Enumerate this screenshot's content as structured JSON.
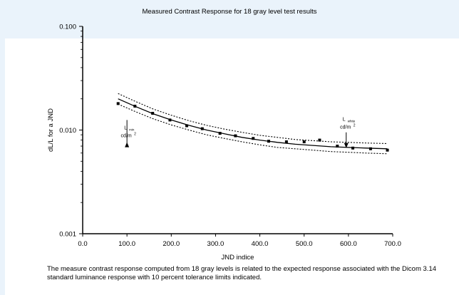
{
  "chart_data": {
    "type": "scatter",
    "title": "Measured Contrast Response for 18 gray level test results",
    "xlabel": "JND indice",
    "ylabel": "dL/L for a JND",
    "xlim": [
      0,
      700
    ],
    "ylim": [
      0.001,
      0.1
    ],
    "y_scale": "log",
    "grid": false,
    "x_ticks": [
      "0.0",
      "100.0",
      "200.0",
      "300.0",
      "400.0",
      "500.0",
      "600.0",
      "700.0"
    ],
    "y_ticks": [
      "0.001",
      "0.010",
      "0.100"
    ],
    "series": [
      {
        "style": "markers",
        "x": [
          80,
          118,
          158,
          197,
          235,
          270,
          310,
          345,
          385,
          420,
          460,
          500,
          535,
          575,
          610,
          650,
          688
        ],
        "y": [
          0.018,
          0.017,
          0.0145,
          0.0125,
          0.011,
          0.0103,
          0.0093,
          0.0088,
          0.0083,
          0.0078,
          0.0077,
          0.0077,
          0.008,
          0.007,
          0.0067,
          0.0066,
          0.0064
        ]
      },
      {
        "style": "solid",
        "x": [
          80,
          120,
          160,
          200,
          240,
          280,
          320,
          360,
          400,
          440,
          480,
          520,
          560,
          600,
          640,
          688
        ],
        "y": [
          0.02,
          0.0168,
          0.0143,
          0.0125,
          0.0111,
          0.01,
          0.0092,
          0.0085,
          0.008,
          0.0076,
          0.0073,
          0.0071,
          0.0069,
          0.0068,
          0.0067,
          0.0066
        ]
      },
      {
        "style": "dotted",
        "x": [
          80,
          120,
          160,
          200,
          240,
          280,
          320,
          360,
          400,
          440,
          480,
          520,
          560,
          600,
          640,
          688
        ],
        "y": [
          0.0225,
          0.0188,
          0.0159,
          0.0139,
          0.0123,
          0.0111,
          0.0102,
          0.0095,
          0.0089,
          0.0085,
          0.0081,
          0.0079,
          0.0077,
          0.0076,
          0.0075,
          0.0074
        ]
      },
      {
        "style": "dotted",
        "x": [
          80,
          120,
          160,
          200,
          240,
          280,
          320,
          360,
          400,
          440,
          480,
          520,
          560,
          600,
          640,
          688
        ],
        "y": [
          0.0178,
          0.015,
          0.0128,
          0.0112,
          0.01,
          0.009,
          0.0083,
          0.0077,
          0.0072,
          0.0068,
          0.0066,
          0.0064,
          0.0062,
          0.0061,
          0.006,
          0.0059
        ]
      }
    ],
    "annotations": [
      {
        "label": "L",
        "sub": "min",
        "unit": "cd/m",
        "sup": "2",
        "x": 100,
        "y": 0.0125,
        "arrow_to_y": 0.0075,
        "side": "below"
      },
      {
        "label": "L",
        "sub": "white",
        "unit": "cd/m",
        "sup": "2",
        "x": 595,
        "y": 0.0095,
        "arrow_to_y": 0.0067,
        "side": "above"
      }
    ]
  },
  "caption": "The measure contrast response computed from 18 gray levels is related to the expected response associated with the Dicom 3.14 standard luminance response with 10 percent tolerance limits indicated."
}
